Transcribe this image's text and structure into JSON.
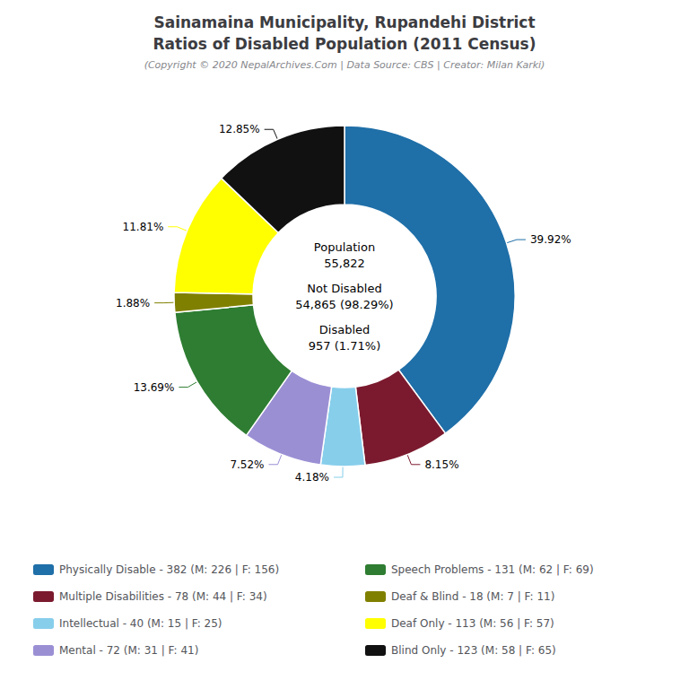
{
  "chart_data": {
    "type": "pie",
    "title": "Sainamaina Municipality, Rupandehi District\nRatios of Disabled Population (2011 Census)",
    "subtitle": "(Copyright © 2020 NepalArchives.Com | Data Source: CBS | Creator: Milan Karki)",
    "categories": [
      "Physically Disable - 382 (M: 226 | F: 156)",
      "Multiple Disabilities - 78 (M: 44 | F: 34)",
      "Intellectual - 40 (M: 15 | F: 25)",
      "Mental - 72 (M: 31 | F: 41)",
      "Speech Problems - 131 (M: 62 | F: 69)",
      "Deaf & Blind - 18 (M: 7 | F: 11)",
      "Deaf Only - 113 (M: 56 | F: 57)",
      "Blind Only - 123 (M: 58 | F: 65)"
    ],
    "values": [
      39.92,
      8.15,
      4.18,
      7.52,
      13.69,
      1.88,
      11.81,
      12.85
    ],
    "value_labels": [
      "39.92%",
      "8.15%",
      "4.18%",
      "7.52%",
      "13.69%",
      "1.88%",
      "11.81%",
      "12.85%"
    ],
    "colors": [
      "#1f6fa8",
      "#7b1a2e",
      "#87ceeb",
      "#9b8fd4",
      "#2e7d32",
      "#808000",
      "#ffff00",
      "#111111"
    ],
    "annotations": [
      "Population\n55,822",
      "Not Disabled\n54,865 (98.29%)",
      "Disabled\n957 (1.71%)"
    ],
    "data_labels": true,
    "legend": "bottom"
  }
}
